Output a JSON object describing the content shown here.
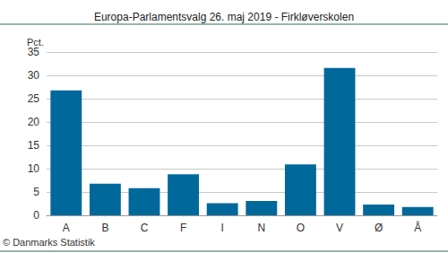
{
  "chart_data": {
    "type": "bar",
    "title": "Europa-Parlamentsvalg 26. maj 2019 - Firkløverskolen",
    "ylabel": "Pct.",
    "categories": [
      "A",
      "B",
      "C",
      "F",
      "I",
      "N",
      "O",
      "V",
      "Ø",
      "Å"
    ],
    "values": [
      26.8,
      6.8,
      5.8,
      8.8,
      2.6,
      3.1,
      10.9,
      31.6,
      2.3,
      1.8
    ],
    "color": "#00689b",
    "ylim": [
      0,
      35
    ],
    "yticks": [
      0,
      5,
      10,
      15,
      20,
      25,
      30,
      35
    ],
    "grid": true,
    "annotations": [
      "© Danmarks Statistik"
    ]
  }
}
